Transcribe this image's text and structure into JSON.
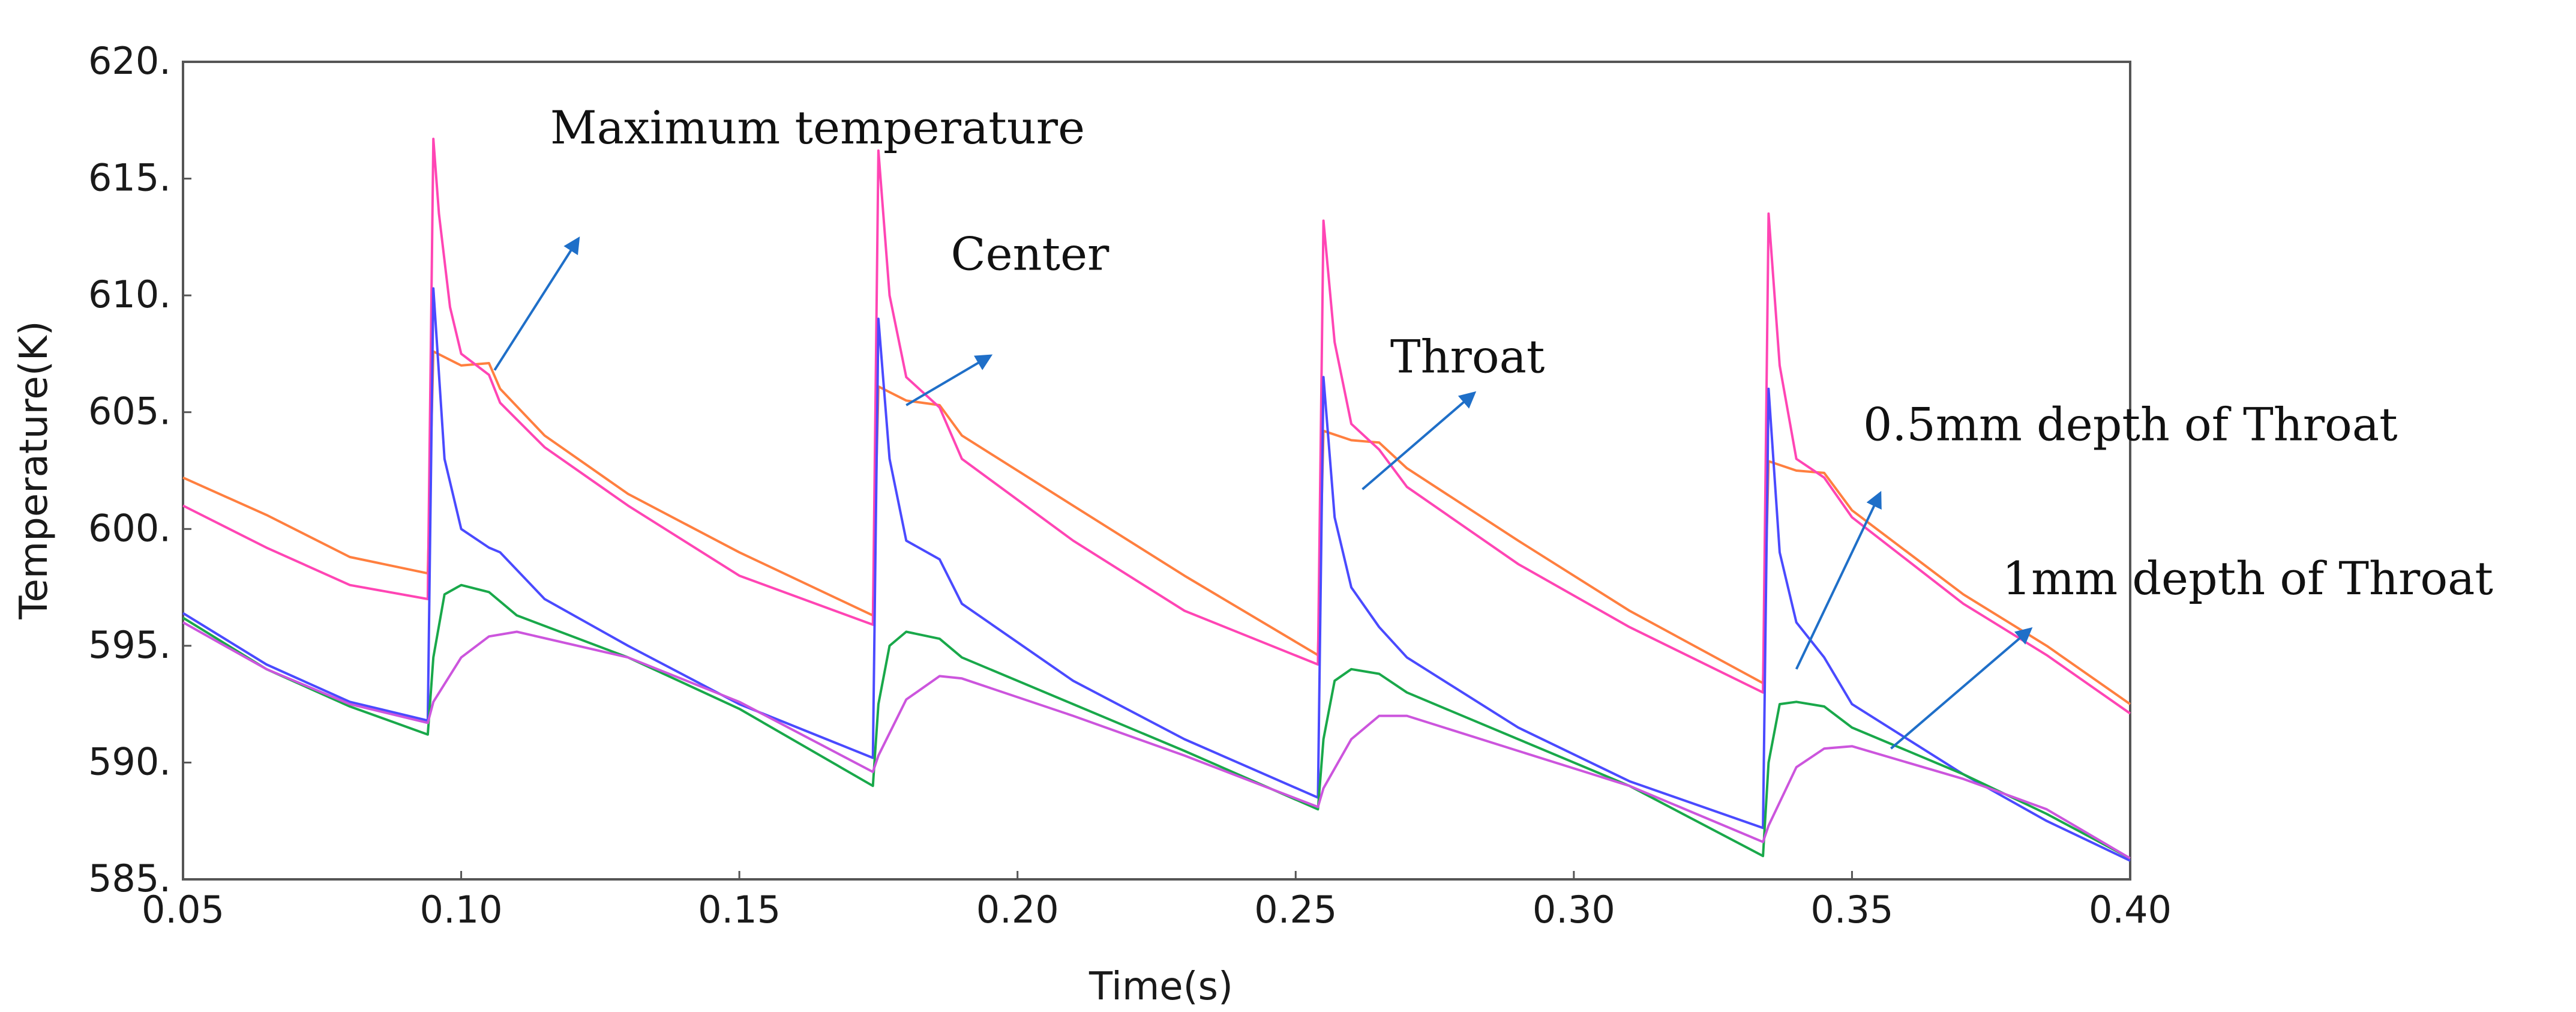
{
  "chart_data": {
    "type": "line",
    "title": "",
    "xlabel": "Time(s)",
    "ylabel": "Temperature(K)",
    "xlim": [
      0.05,
      0.4
    ],
    "ylim": [
      585,
      620
    ],
    "x_ticks": [
      "0.05",
      "0.10",
      "0.15",
      "0.20",
      "0.25",
      "0.30",
      "0.35",
      "0.40"
    ],
    "y_ticks": [
      "585.",
      "590.",
      "595.",
      "600.",
      "605.",
      "610.",
      "615.",
      "620."
    ],
    "grid": false,
    "colors": {
      "orange": "#ff7f3f",
      "pink": "#ff45b4",
      "blue": "#4a4aff",
      "green": "#19a84a",
      "violet": "#cc55dd",
      "arrow": "#1f6fc8",
      "frame": "#555555"
    },
    "series": [
      {
        "name": "series-orange",
        "color": "orange",
        "points": [
          [
            0.05,
            602.2
          ],
          [
            0.065,
            600.6
          ],
          [
            0.08,
            598.8
          ],
          [
            0.094,
            598.1
          ],
          [
            0.095,
            607.6
          ],
          [
            0.1,
            607.0
          ],
          [
            0.105,
            607.1
          ],
          [
            0.107,
            606.0
          ],
          [
            0.115,
            604.0
          ],
          [
            0.13,
            601.5
          ],
          [
            0.15,
            599.0
          ],
          [
            0.174,
            596.3
          ],
          [
            0.175,
            606.1
          ],
          [
            0.18,
            605.5
          ],
          [
            0.186,
            605.3
          ],
          [
            0.19,
            604.0
          ],
          [
            0.21,
            601.0
          ],
          [
            0.23,
            598.0
          ],
          [
            0.254,
            594.6
          ],
          [
            0.255,
            604.2
          ],
          [
            0.26,
            603.8
          ],
          [
            0.265,
            603.7
          ],
          [
            0.27,
            602.6
          ],
          [
            0.29,
            599.5
          ],
          [
            0.31,
            596.5
          ],
          [
            0.334,
            593.4
          ],
          [
            0.335,
            602.9
          ],
          [
            0.34,
            602.5
          ],
          [
            0.345,
            602.4
          ],
          [
            0.35,
            600.8
          ],
          [
            0.37,
            597.2
          ],
          [
            0.385,
            595.0
          ],
          [
            0.4,
            592.5
          ]
        ]
      },
      {
        "name": "series-pink",
        "color": "pink",
        "points": [
          [
            0.05,
            601.0
          ],
          [
            0.065,
            599.2
          ],
          [
            0.08,
            597.6
          ],
          [
            0.094,
            597.0
          ],
          [
            0.095,
            616.7
          ],
          [
            0.096,
            613.5
          ],
          [
            0.098,
            609.5
          ],
          [
            0.1,
            607.5
          ],
          [
            0.105,
            606.6
          ],
          [
            0.107,
            605.4
          ],
          [
            0.115,
            603.5
          ],
          [
            0.13,
            601.0
          ],
          [
            0.15,
            598.0
          ],
          [
            0.174,
            595.9
          ],
          [
            0.175,
            616.2
          ],
          [
            0.177,
            610.0
          ],
          [
            0.18,
            606.5
          ],
          [
            0.186,
            605.2
          ],
          [
            0.19,
            603.0
          ],
          [
            0.21,
            599.5
          ],
          [
            0.23,
            596.5
          ],
          [
            0.254,
            594.2
          ],
          [
            0.255,
            613.2
          ],
          [
            0.257,
            608.0
          ],
          [
            0.26,
            604.5
          ],
          [
            0.265,
            603.4
          ],
          [
            0.27,
            601.8
          ],
          [
            0.29,
            598.5
          ],
          [
            0.31,
            595.8
          ],
          [
            0.334,
            593.0
          ],
          [
            0.335,
            613.5
          ],
          [
            0.337,
            607.0
          ],
          [
            0.34,
            603.0
          ],
          [
            0.345,
            602.2
          ],
          [
            0.35,
            600.5
          ],
          [
            0.37,
            596.8
          ],
          [
            0.385,
            594.6
          ],
          [
            0.4,
            592.1
          ]
        ]
      },
      {
        "name": "series-blue",
        "color": "blue",
        "points": [
          [
            0.05,
            596.4
          ],
          [
            0.065,
            594.2
          ],
          [
            0.08,
            592.6
          ],
          [
            0.094,
            591.8
          ],
          [
            0.095,
            610.3
          ],
          [
            0.097,
            603.0
          ],
          [
            0.1,
            600.0
          ],
          [
            0.105,
            599.2
          ],
          [
            0.107,
            599.0
          ],
          [
            0.115,
            597.0
          ],
          [
            0.13,
            595.0
          ],
          [
            0.15,
            592.5
          ],
          [
            0.174,
            590.2
          ],
          [
            0.175,
            609.0
          ],
          [
            0.177,
            603.0
          ],
          [
            0.18,
            599.5
          ],
          [
            0.186,
            598.7
          ],
          [
            0.19,
            596.8
          ],
          [
            0.21,
            593.5
          ],
          [
            0.23,
            591.0
          ],
          [
            0.254,
            588.5
          ],
          [
            0.255,
            606.5
          ],
          [
            0.257,
            600.5
          ],
          [
            0.26,
            597.5
          ],
          [
            0.265,
            595.8
          ],
          [
            0.27,
            594.5
          ],
          [
            0.29,
            591.5
          ],
          [
            0.31,
            589.2
          ],
          [
            0.334,
            587.2
          ],
          [
            0.335,
            606.0
          ],
          [
            0.337,
            599.0
          ],
          [
            0.34,
            596.0
          ],
          [
            0.345,
            594.5
          ],
          [
            0.35,
            592.5
          ],
          [
            0.37,
            589.5
          ],
          [
            0.385,
            587.5
          ],
          [
            0.4,
            585.8
          ]
        ]
      },
      {
        "name": "series-green",
        "color": "green",
        "points": [
          [
            0.05,
            596.2
          ],
          [
            0.065,
            594.0
          ],
          [
            0.08,
            592.4
          ],
          [
            0.094,
            591.2
          ],
          [
            0.095,
            594.5
          ],
          [
            0.097,
            597.2
          ],
          [
            0.1,
            597.6
          ],
          [
            0.105,
            597.3
          ],
          [
            0.11,
            596.3
          ],
          [
            0.13,
            594.5
          ],
          [
            0.15,
            592.3
          ],
          [
            0.174,
            589.0
          ],
          [
            0.175,
            592.5
          ],
          [
            0.177,
            595.0
          ],
          [
            0.18,
            595.6
          ],
          [
            0.186,
            595.3
          ],
          [
            0.19,
            594.5
          ],
          [
            0.21,
            592.5
          ],
          [
            0.23,
            590.5
          ],
          [
            0.254,
            588.0
          ],
          [
            0.255,
            591.0
          ],
          [
            0.257,
            593.5
          ],
          [
            0.26,
            594.0
          ],
          [
            0.265,
            593.8
          ],
          [
            0.27,
            593.0
          ],
          [
            0.29,
            591.0
          ],
          [
            0.31,
            589.0
          ],
          [
            0.334,
            586.0
          ],
          [
            0.335,
            590.0
          ],
          [
            0.337,
            592.5
          ],
          [
            0.34,
            592.6
          ],
          [
            0.345,
            592.4
          ],
          [
            0.35,
            591.5
          ],
          [
            0.37,
            589.5
          ],
          [
            0.385,
            587.8
          ],
          [
            0.4,
            585.9
          ]
        ]
      },
      {
        "name": "series-violet",
        "color": "violet",
        "points": [
          [
            0.05,
            596.0
          ],
          [
            0.065,
            594.0
          ],
          [
            0.08,
            592.5
          ],
          [
            0.094,
            591.7
          ],
          [
            0.095,
            592.6
          ],
          [
            0.1,
            594.5
          ],
          [
            0.105,
            595.4
          ],
          [
            0.11,
            595.6
          ],
          [
            0.13,
            594.5
          ],
          [
            0.15,
            592.6
          ],
          [
            0.174,
            589.6
          ],
          [
            0.175,
            590.3
          ],
          [
            0.18,
            592.7
          ],
          [
            0.186,
            593.7
          ],
          [
            0.19,
            593.6
          ],
          [
            0.21,
            592.0
          ],
          [
            0.23,
            590.3
          ],
          [
            0.254,
            588.1
          ],
          [
            0.255,
            588.9
          ],
          [
            0.26,
            591.0
          ],
          [
            0.265,
            592.0
          ],
          [
            0.27,
            592.0
          ],
          [
            0.29,
            590.5
          ],
          [
            0.31,
            589.0
          ],
          [
            0.334,
            586.6
          ],
          [
            0.335,
            587.3
          ],
          [
            0.34,
            589.8
          ],
          [
            0.345,
            590.6
          ],
          [
            0.35,
            590.7
          ],
          [
            0.37,
            589.3
          ],
          [
            0.385,
            588.0
          ],
          [
            0.4,
            585.9
          ]
        ]
      }
    ],
    "annotations": [
      {
        "text": "Maximum temperature",
        "x": 0.116,
        "y": 616.5,
        "arrow_from": [
          0.106,
          606.8
        ],
        "arrow_to": [
          0.121,
          612.4
        ]
      },
      {
        "text": "Center",
        "x": 0.188,
        "y": 611.1,
        "arrow_from": [
          0.18,
          605.3
        ],
        "arrow_to": [
          0.195,
          607.4
        ]
      },
      {
        "text": "Throat",
        "x": 0.267,
        "y": 606.7,
        "arrow_from": [
          0.262,
          601.7
        ],
        "arrow_to": [
          0.282,
          605.8
        ]
      },
      {
        "text": "0.5mm depth of Throat",
        "x": 0.352,
        "y": 603.8,
        "arrow_from": [
          0.34,
          594.0
        ],
        "arrow_to": [
          0.355,
          601.5
        ]
      },
      {
        "text": "1mm depth of Throat",
        "x": 0.377,
        "y": 597.2,
        "arrow_from": [
          0.357,
          590.6
        ],
        "arrow_to": [
          0.382,
          595.7
        ]
      }
    ]
  }
}
